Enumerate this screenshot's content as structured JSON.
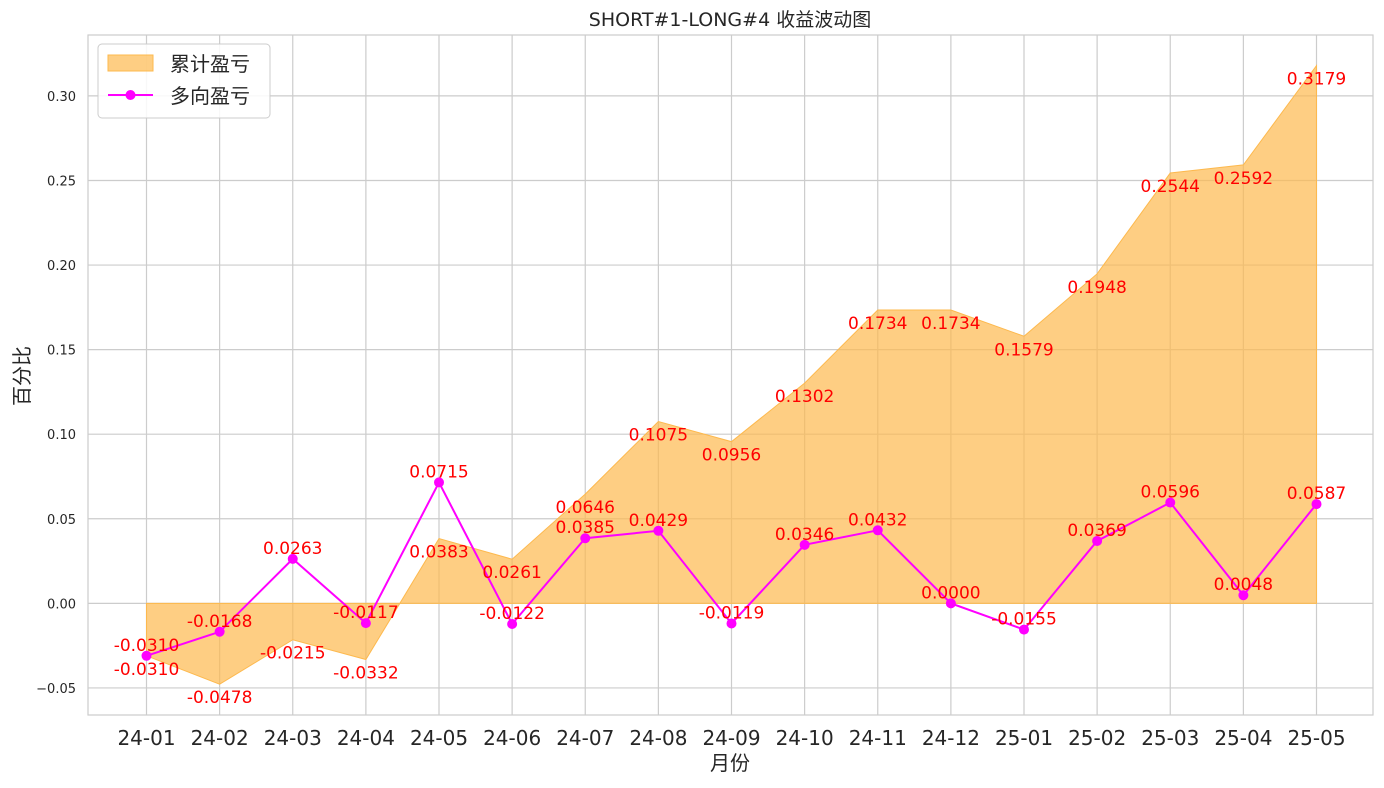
{
  "chart_data": {
    "type": "area",
    "title": "SHORT#1-LONG#4 收益波动图",
    "xlabel": "月份",
    "ylabel": "百分比",
    "ylim": [
      -0.066,
      0.336
    ],
    "yticks": [
      -0.05,
      0.0,
      0.05,
      0.1,
      0.15,
      0.2,
      0.25,
      0.3
    ],
    "ytick_labels": [
      "−0.05",
      "0.00",
      "0.05",
      "0.10",
      "0.15",
      "0.20",
      "0.25",
      "0.30"
    ],
    "grid": true,
    "legend_position": "top-left",
    "categories": [
      "24-01",
      "24-02",
      "24-03",
      "24-04",
      "24-05",
      "24-06",
      "24-07",
      "24-08",
      "24-09",
      "24-10",
      "24-11",
      "24-12",
      "25-01",
      "25-02",
      "25-03",
      "25-04",
      "25-05"
    ],
    "series": [
      {
        "name": "累计盈亏",
        "kind": "area",
        "color": "#fdb94e",
        "values": [
          -0.031,
          -0.0478,
          -0.0215,
          -0.0332,
          0.0383,
          0.0261,
          0.0646,
          0.1075,
          0.0956,
          0.1302,
          0.1734,
          0.1734,
          0.1579,
          0.1948,
          0.2544,
          0.2592,
          0.3179
        ],
        "labels": [
          "-0.0310",
          "-0.0478",
          "-0.0215",
          "-0.0332",
          "0.0383",
          "0.0261",
          "0.0646",
          "0.1075",
          "0.0956",
          "0.1302",
          "0.1734",
          "0.1734",
          "0.1579",
          "0.1948",
          "0.2544",
          "0.2592",
          "0.3179"
        ]
      },
      {
        "name": "多向盈亏",
        "kind": "line",
        "color": "#ff00ff",
        "values": [
          -0.031,
          -0.0168,
          0.0263,
          -0.0117,
          0.0715,
          -0.0122,
          0.0385,
          0.0429,
          -0.0119,
          0.0346,
          0.0432,
          0.0,
          -0.0155,
          0.0369,
          0.0596,
          0.0048,
          0.0587
        ],
        "labels": [
          "-0.0310",
          "-0.0168",
          "0.0263",
          "-0.0117",
          "0.0715",
          "-0.0122",
          "0.0385",
          "0.0429",
          "-0.0119",
          "0.0346",
          "0.0432",
          "0.0000",
          "-0.0155",
          "0.0369",
          "0.0596",
          "0.0048",
          "0.0587"
        ]
      }
    ],
    "label_color": "#ff0000"
  }
}
